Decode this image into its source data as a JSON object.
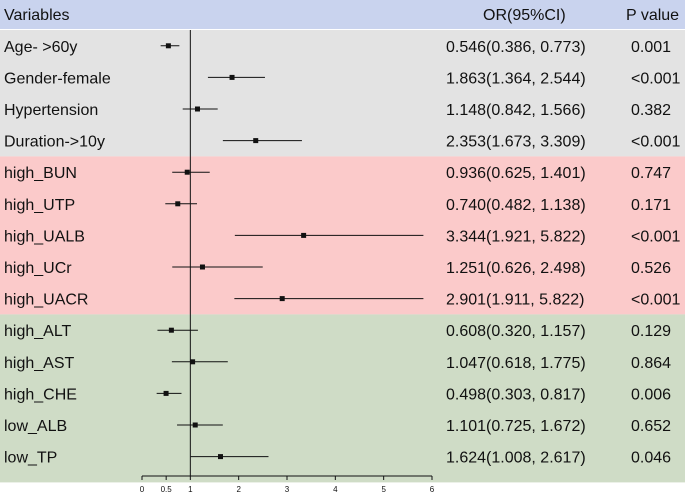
{
  "chart_data": {
    "type": "forest",
    "headers": {
      "variables": "Variables",
      "or": "OR(95%CI)",
      "p": "P value"
    },
    "header_color": "#c9d3ee",
    "reference_line": 1,
    "xlim": [
      0,
      6
    ],
    "x_ticks": [
      {
        "value": 0,
        "label": "0"
      },
      {
        "value": 0.5,
        "label": "0.5"
      },
      {
        "value": 1,
        "label": "1"
      },
      {
        "value": 2,
        "label": "2"
      },
      {
        "value": 3,
        "label": "3"
      },
      {
        "value": 4,
        "label": "4"
      },
      {
        "value": 5,
        "label": "5"
      },
      {
        "value": 6,
        "label": "6"
      }
    ],
    "groups": [
      {
        "color": "#e3e3e3",
        "rows": [
          {
            "variable": "Age- >60y",
            "or": 0.546,
            "lower": 0.386,
            "upper": 0.773,
            "or_text": "0.546(0.386, 0.773)",
            "p": "0.001"
          },
          {
            "variable": "Gender-female",
            "or": 1.863,
            "lower": 1.364,
            "upper": 2.544,
            "or_text": "1.863(1.364, 2.544)",
            "p": "<0.001"
          },
          {
            "variable": "Hypertension",
            "or": 1.148,
            "lower": 0.842,
            "upper": 1.566,
            "or_text": "1.148(0.842, 1.566)",
            "p": "0.382"
          },
          {
            "variable": "Duration->10y",
            "or": 2.353,
            "lower": 1.673,
            "upper": 3.309,
            "or_text": "2.353(1.673, 3.309)",
            "p": "<0.001"
          }
        ]
      },
      {
        "color": "#fbcaca",
        "rows": [
          {
            "variable": "high_BUN",
            "or": 0.936,
            "lower": 0.625,
            "upper": 1.401,
            "or_text": "0.936(0.625, 1.401)",
            "p": "0.747"
          },
          {
            "variable": "high_UTP",
            "or": 0.74,
            "lower": 0.482,
            "upper": 1.138,
            "or_text": "0.740(0.482, 1.138)",
            "p": "0.171"
          },
          {
            "variable": "high_UALB",
            "or": 3.344,
            "lower": 1.921,
            "upper": 5.822,
            "or_text": "3.344(1.921, 5.822)",
            "p": "<0.001"
          },
          {
            "variable": "high_UCr",
            "or": 1.251,
            "lower": 0.626,
            "upper": 2.498,
            "or_text": "1.251(0.626, 2.498)",
            "p": "0.526"
          },
          {
            "variable": "high_UACR",
            "or": 2.901,
            "lower": 1.911,
            "upper": 5.822,
            "or_text": "2.901(1.911, 5.822)",
            "p": "<0.001"
          }
        ]
      },
      {
        "color": "#cfdcc6",
        "rows": [
          {
            "variable": "high_ALT",
            "or": 0.608,
            "lower": 0.32,
            "upper": 1.157,
            "or_text": "0.608(0.320, 1.157)",
            "p": "0.129"
          },
          {
            "variable": "high_AST",
            "or": 1.047,
            "lower": 0.618,
            "upper": 1.775,
            "or_text": "1.047(0.618, 1.775)",
            "p": "0.864"
          },
          {
            "variable": "high_CHE",
            "or": 0.498,
            "lower": 0.303,
            "upper": 0.817,
            "or_text": "0.498(0.303, 0.817)",
            "p": "0.006"
          },
          {
            "variable": "low_ALB",
            "or": 1.101,
            "lower": 0.725,
            "upper": 1.672,
            "or_text": "1.101(0.725, 1.672)",
            "p": "0.652"
          },
          {
            "variable": "low_TP",
            "or": 1.624,
            "lower": 1.008,
            "upper": 2.617,
            "or_text": "1.624(1.008, 2.617)",
            "p": "0.046"
          }
        ]
      }
    ]
  }
}
